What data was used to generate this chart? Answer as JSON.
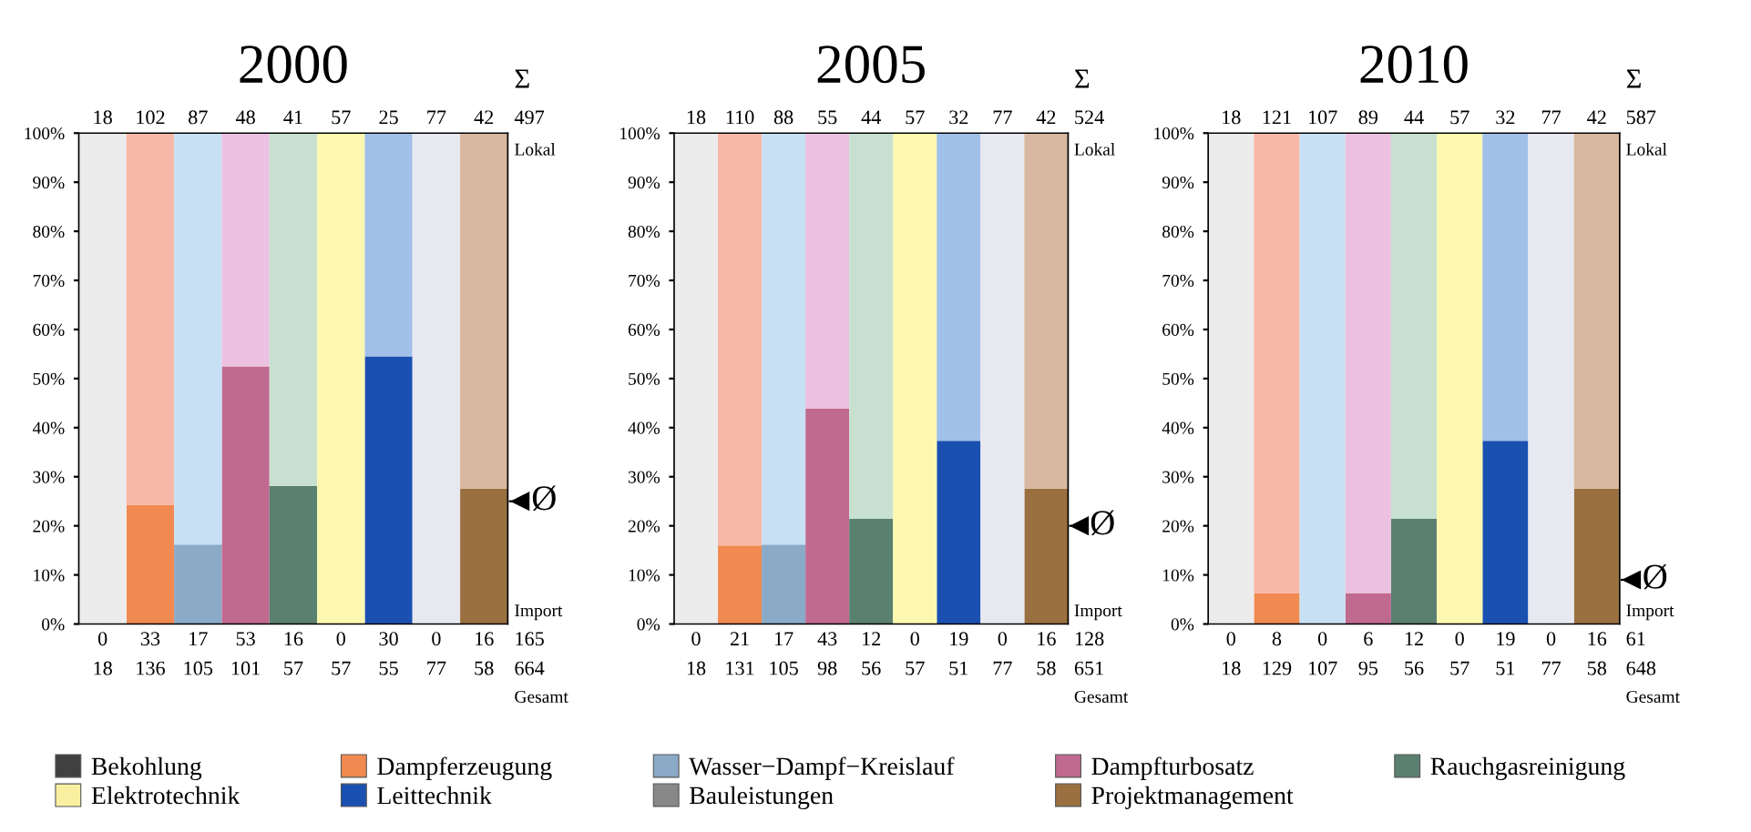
{
  "chart_data": [
    {
      "type": "bar",
      "title": "2000",
      "stacked": true,
      "categories": [
        null,
        null,
        null,
        null,
        null,
        null,
        null,
        null,
        null
      ],
      "series": [
        {
          "name": "Bekohlung",
          "color": "#404040",
          "values": [
            0,
            null,
            null,
            null,
            null,
            null,
            null,
            null,
            null
          ]
        },
        {
          "name": "Dampferzeugung",
          "color": "#f08a50",
          "values": [
            null,
            24.3,
            null,
            null,
            null,
            null,
            null,
            null,
            null
          ]
        },
        {
          "name": "Wasser−Dampf−Kreislauf",
          "color": "#8aaac8",
          "values": [
            null,
            null,
            16.2,
            null,
            null,
            null,
            null,
            null,
            null
          ]
        },
        {
          "name": "Dampfturbosatz",
          "color": "#c06a90",
          "values": [
            null,
            null,
            null,
            52.5,
            null,
            null,
            null,
            null,
            null
          ]
        },
        {
          "name": "Rauchgasreinigung",
          "color": "#5a8070",
          "values": [
            null,
            null,
            null,
            null,
            28.1,
            null,
            null,
            null,
            null
          ]
        },
        {
          "name": "Elektrotechnik",
          "color": "#f8f0a0",
          "values": [
            null,
            null,
            null,
            null,
            null,
            0,
            null,
            null,
            null
          ]
        },
        {
          "name": "Leittechnik",
          "color": "#1a50b0",
          "values": [
            null,
            null,
            null,
            null,
            null,
            null,
            54.5,
            null,
            null
          ]
        },
        {
          "name": "Bauleistungen",
          "color": "#888888",
          "values": [
            null,
            null,
            null,
            null,
            null,
            null,
            null,
            0,
            null
          ]
        },
        {
          "name": "Projektmanagement",
          "color": "#9a7040",
          "values": [
            null,
            null,
            null,
            null,
            null,
            null,
            null,
            null,
            27.6
          ]
        },
        {
          "colors": [
            "#ececec",
            "#f8b8a8",
            "#c8e0f4",
            "#ecc0e0",
            "#c8e0d0",
            "#fcf8b0",
            "#a0c0e8",
            "#e8e8f0",
            "#d8b8a0"
          ],
          "values": [
            100,
            75.7,
            83.8,
            47.5,
            71.9,
            100,
            45.5,
            100,
            72.4
          ]
        }
      ],
      "ylim": [
        0,
        100
      ],
      "yticks": [
        {
          "value": 0,
          "label": "0%"
        },
        {
          "value": 10,
          "label": "10%"
        },
        {
          "value": 20,
          "label": "20%"
        },
        {
          "value": 30,
          "label": "30%"
        },
        {
          "value": 40,
          "label": "40%"
        },
        {
          "value": 50,
          "label": "50%"
        },
        {
          "value": 60,
          "label": "60%"
        },
        {
          "value": 70,
          "label": "70%"
        },
        {
          "value": 80,
          "label": "80%"
        },
        {
          "value": 90,
          "label": "90%"
        },
        {
          "value": 100,
          "label": "100%"
        }
      ],
      "tick_labels": "y",
      "legend": "bottom",
      "ref_lines": [
        {
          "axis": "y",
          "value": 25,
          "label": "Ø",
          "color": "#000000"
        }
      ],
      "annotations": [
        "Σ",
        "Lokal",
        "Import",
        "Gesamt",
        "497",
        "165",
        "664",
        "18",
        "102",
        "87",
        "48",
        "41",
        "57",
        "25",
        "77",
        "42",
        "0",
        "33",
        "17",
        "53",
        "16",
        "0",
        "30",
        "0",
        "16",
        "18",
        "136",
        "105",
        "101",
        "57",
        "57",
        "55",
        "77",
        "58"
      ]
    },
    {
      "type": "bar",
      "title": "2005",
      "stacked": true,
      "categories": [
        null,
        null,
        null,
        null,
        null,
        null,
        null,
        null,
        null
      ],
      "series": [
        {
          "color": "#404040",
          "values": [
            0,
            null,
            null,
            null,
            null,
            null,
            null,
            null,
            null
          ]
        },
        {
          "color": "#f08a50",
          "values": [
            null,
            16.0,
            null,
            null,
            null,
            null,
            null,
            null,
            null
          ]
        },
        {
          "color": "#8aaac8",
          "values": [
            null,
            null,
            16.2,
            null,
            null,
            null,
            null,
            null,
            null
          ]
        },
        {
          "color": "#c06a90",
          "values": [
            null,
            null,
            null,
            43.9,
            null,
            null,
            null,
            null,
            null
          ]
        },
        {
          "color": "#5a8070",
          "values": [
            null,
            null,
            null,
            null,
            21.4,
            null,
            null,
            null,
            null
          ]
        },
        {
          "color": "#f8f0a0",
          "values": [
            null,
            null,
            null,
            null,
            null,
            0,
            null,
            null,
            null
          ]
        },
        {
          "color": "#1a50b0",
          "values": [
            null,
            null,
            null,
            null,
            null,
            null,
            37.3,
            null,
            null
          ]
        },
        {
          "color": "#888888",
          "values": [
            null,
            null,
            null,
            null,
            null,
            null,
            null,
            0,
            null
          ]
        },
        {
          "color": "#9a7040",
          "values": [
            null,
            null,
            null,
            null,
            null,
            null,
            null,
            null,
            27.6
          ]
        },
        {
          "colors": [
            "#ececec",
            "#f8b8a8",
            "#c8e0f4",
            "#ecc0e0",
            "#c8e0d0",
            "#fcf8b0",
            "#a0c0e8",
            "#e8e8f0",
            "#d8b8a0"
          ],
          "values": [
            100,
            84.0,
            83.8,
            56.1,
            78.6,
            100,
            62.7,
            100,
            72.4
          ]
        }
      ],
      "ylim": [
        0,
        100
      ],
      "yticks": [
        {
          "value": 0,
          "label": "0%"
        },
        {
          "value": 10,
          "label": "10%"
        },
        {
          "value": 20,
          "label": "20%"
        },
        {
          "value": 30,
          "label": "30%"
        },
        {
          "value": 40,
          "label": "40%"
        },
        {
          "value": 50,
          "label": "50%"
        },
        {
          "value": 60,
          "label": "60%"
        },
        {
          "value": 70,
          "label": "70%"
        },
        {
          "value": 80,
          "label": "80%"
        },
        {
          "value": 90,
          "label": "90%"
        },
        {
          "value": 100,
          "label": "100%"
        }
      ],
      "tick_labels": "y",
      "ref_lines": [
        {
          "axis": "y",
          "value": 20,
          "label": "Ø",
          "color": "#000000"
        }
      ],
      "annotations": [
        "Σ",
        "Lokal",
        "Import",
        "Gesamt",
        "524",
        "128",
        "651",
        "18",
        "110",
        "88",
        "55",
        "44",
        "57",
        "32",
        "77",
        "42",
        "0",
        "21",
        "17",
        "43",
        "12",
        "0",
        "19",
        "0",
        "16",
        "18",
        "131",
        "105",
        "98",
        "56",
        "57",
        "51",
        "77",
        "58"
      ]
    },
    {
      "type": "bar",
      "title": "2010",
      "stacked": true,
      "categories": [
        null,
        null,
        null,
        null,
        null,
        null,
        null,
        null,
        null
      ],
      "series": [
        {
          "color": "#404040",
          "values": [
            0,
            null,
            null,
            null,
            null,
            null,
            null,
            null,
            null
          ]
        },
        {
          "color": "#f08a50",
          "values": [
            null,
            6.2,
            null,
            null,
            null,
            null,
            null,
            null,
            null
          ]
        },
        {
          "color": "#8aaac8",
          "values": [
            null,
            null,
            0,
            null,
            null,
            null,
            null,
            null,
            null
          ]
        },
        {
          "color": "#c06a90",
          "values": [
            null,
            null,
            null,
            6.3,
            null,
            null,
            null,
            null,
            null
          ]
        },
        {
          "color": "#5a8070",
          "values": [
            null,
            null,
            null,
            null,
            21.4,
            null,
            null,
            null,
            null
          ]
        },
        {
          "color": "#f8f0a0",
          "values": [
            null,
            null,
            null,
            null,
            null,
            0,
            null,
            null,
            null
          ]
        },
        {
          "color": "#1a50b0",
          "values": [
            null,
            null,
            null,
            null,
            null,
            null,
            37.3,
            null,
            null
          ]
        },
        {
          "color": "#888888",
          "values": [
            null,
            null,
            null,
            null,
            null,
            null,
            null,
            0,
            null
          ]
        },
        {
          "color": "#9a7040",
          "values": [
            null,
            null,
            null,
            null,
            null,
            null,
            null,
            null,
            27.6
          ]
        },
        {
          "colors": [
            "#ececec",
            "#f8b8a8",
            "#c8e0f4",
            "#ecc0e0",
            "#c8e0d0",
            "#fcf8b0",
            "#a0c0e8",
            "#e8e8f0",
            "#d8b8a0"
          ],
          "values": [
            100,
            93.8,
            100,
            93.7,
            78.6,
            100,
            62.7,
            100,
            72.4
          ]
        }
      ],
      "ylim": [
        0,
        100
      ],
      "yticks": [
        {
          "value": 0,
          "label": "0%"
        },
        {
          "value": 10,
          "label": "10%"
        },
        {
          "value": 20,
          "label": "20%"
        },
        {
          "value": 30,
          "label": "30%"
        },
        {
          "value": 40,
          "label": "40%"
        },
        {
          "value": 50,
          "label": "50%"
        },
        {
          "value": 60,
          "label": "60%"
        },
        {
          "value": 70,
          "label": "70%"
        },
        {
          "value": 80,
          "label": "80%"
        },
        {
          "value": 90,
          "label": "90%"
        },
        {
          "value": 100,
          "label": "100%"
        }
      ],
      "tick_labels": "y",
      "ref_lines": [
        {
          "axis": "y",
          "value": 9,
          "label": "Ø",
          "color": "#000000"
        }
      ],
      "annotations": [
        "Σ",
        "Lokal",
        "Import",
        "Gesamt",
        "587",
        "61",
        "648",
        "18",
        "121",
        "107",
        "89",
        "44",
        "57",
        "32",
        "77",
        "42",
        "0",
        "8",
        "0",
        "6",
        "12",
        "0",
        "19",
        "0",
        "16",
        "18",
        "129",
        "107",
        "95",
        "56",
        "57",
        "51",
        "77",
        "58"
      ]
    }
  ]
}
